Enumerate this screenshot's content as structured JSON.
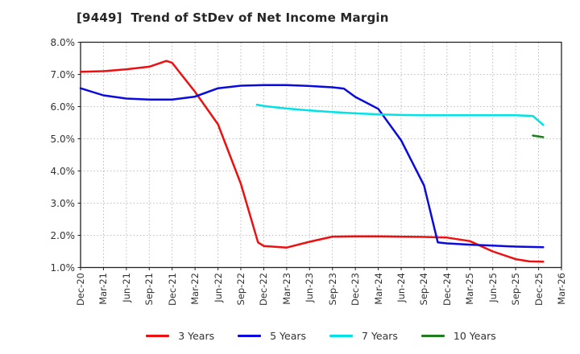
{
  "chart_data": {
    "type": "line",
    "title": "[9449]  Trend of StDev of Net Income Margin",
    "xlabel": "",
    "ylabel": "",
    "y_unit": "%",
    "ylim": [
      1.0,
      8.0
    ],
    "grid": true,
    "legend_position": "bottom-center",
    "y_tick_labels": [
      "8.0%",
      "7.0%",
      "6.0%",
      "5.0%",
      "4.0%",
      "3.0%",
      "2.0%",
      "1.0%"
    ],
    "y_tick_values": [
      8.0,
      7.0,
      6.0,
      5.0,
      4.0,
      3.0,
      2.0,
      1.0
    ],
    "categories": [
      "Dec-20",
      "Mar-21",
      "Jun-21",
      "Sep-21",
      "Dec-21",
      "Mar-22",
      "Jun-22",
      "Sep-22",
      "Dec-22",
      "Mar-23",
      "Jun-23",
      "Sep-23",
      "Dec-23",
      "Mar-24",
      "Jun-24",
      "Sep-24",
      "Dec-24",
      "Mar-25",
      "Jun-25",
      "Sep-25",
      "Dec-25",
      "Mar-26"
    ],
    "series": [
      {
        "name": "3 Years",
        "color": "#ee1010",
        "points": [
          [
            0,
            7.08
          ],
          [
            1,
            7.1
          ],
          [
            2,
            7.16
          ],
          [
            3,
            7.24
          ],
          [
            3.75,
            7.42
          ],
          [
            4,
            7.36
          ],
          [
            5,
            6.46
          ],
          [
            6,
            5.45
          ],
          [
            7,
            3.6
          ],
          [
            7.75,
            1.78
          ],
          [
            8,
            1.67
          ],
          [
            9,
            1.62
          ],
          [
            10,
            1.8
          ],
          [
            11,
            1.96
          ],
          [
            12,
            1.97
          ],
          [
            13,
            1.97
          ],
          [
            14,
            1.96
          ],
          [
            15,
            1.95
          ],
          [
            16,
            1.93
          ],
          [
            17,
            1.82
          ],
          [
            18,
            1.5
          ],
          [
            19,
            1.26
          ],
          [
            19.6,
            1.19
          ],
          [
            20.2,
            1.18
          ]
        ]
      },
      {
        "name": "5 Years",
        "color": "#0a0ae0",
        "points": [
          [
            0,
            6.57
          ],
          [
            1,
            6.35
          ],
          [
            2,
            6.25
          ],
          [
            3,
            6.22
          ],
          [
            4,
            6.22
          ],
          [
            5,
            6.31
          ],
          [
            6,
            6.57
          ],
          [
            7,
            6.65
          ],
          [
            8,
            6.67
          ],
          [
            9,
            6.67
          ],
          [
            10,
            6.64
          ],
          [
            11,
            6.6
          ],
          [
            11.5,
            6.56
          ],
          [
            12,
            6.3
          ],
          [
            13,
            5.93
          ],
          [
            14,
            4.95
          ],
          [
            15,
            3.55
          ],
          [
            15.6,
            1.78
          ],
          [
            16,
            1.75
          ],
          [
            17,
            1.71
          ],
          [
            18,
            1.68
          ],
          [
            19,
            1.65
          ],
          [
            20.2,
            1.63
          ]
        ]
      },
      {
        "name": "7 Years",
        "color": "#00e2e6",
        "points": [
          [
            7.7,
            6.06
          ],
          [
            8,
            6.02
          ],
          [
            9,
            5.94
          ],
          [
            10,
            5.88
          ],
          [
            11,
            5.83
          ],
          [
            12,
            5.79
          ],
          [
            13,
            5.76
          ],
          [
            14,
            5.74
          ],
          [
            15,
            5.73
          ],
          [
            16,
            5.73
          ],
          [
            17,
            5.73
          ],
          [
            18,
            5.73
          ],
          [
            19,
            5.73
          ],
          [
            19.75,
            5.71
          ],
          [
            20.2,
            5.43
          ]
        ]
      },
      {
        "name": "10 Years",
        "color": "#1e7d1e",
        "points": [
          [
            19.75,
            5.1
          ],
          [
            20.2,
            5.05
          ]
        ]
      }
    ]
  }
}
